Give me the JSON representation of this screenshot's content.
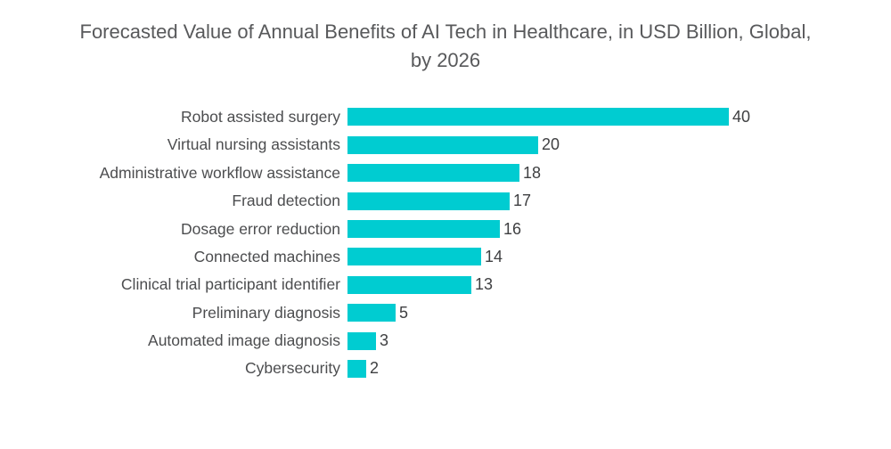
{
  "colors": {
    "background": "#ffffff",
    "bar": "#00CCD1",
    "title_text": "#58595B",
    "label_text": "#4C4D4F",
    "value_text": "#3E3F41"
  },
  "chart_data": {
    "type": "bar",
    "orientation": "horizontal",
    "title": "Forecasted Value of Annual Benefits of AI Tech in Healthcare, in USD Billion, Global, by 2026",
    "title_lines": [
      "Forecasted Value of Annual Benefits of AI Tech in Healthcare, in USD Billion, Global,",
      "by 2026"
    ],
    "categories": [
      "Robot assisted surgery",
      "Virtual nursing assistants",
      "Administrative workflow assistance",
      "Fraud detection",
      "Dosage error reduction",
      "Connected machines",
      "Clinical trial participant identifier",
      "Preliminary diagnosis",
      "Automated image diagnosis",
      "Cybersecurity"
    ],
    "values": [
      40,
      20,
      18,
      17,
      16,
      14,
      13,
      5,
      3,
      2
    ],
    "value_labels_shown": true,
    "xlabel": "",
    "ylabel": "",
    "xlim": [
      0,
      42
    ],
    "grid": false,
    "legend": false,
    "bar_color": "#00CCD1"
  }
}
